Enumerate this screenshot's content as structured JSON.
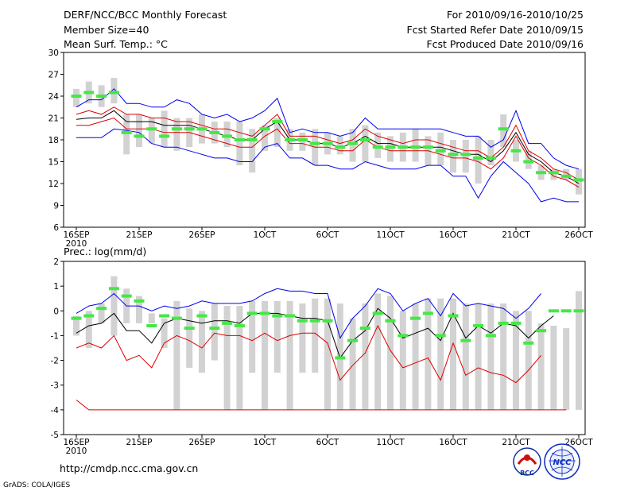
{
  "header": {
    "title": "DERF/NCC/BCC Monthly Forecast",
    "member": "Member Size=40",
    "variable": "Mean Surf. Temp.: °C",
    "period": "For 2010/09/16-2010/10/25",
    "started": "Fcst Started Refer Date 2010/09/15",
    "produced": "Fcst Produced Date 2010/09/16"
  },
  "footer": {
    "url": "http://cmdp.ncc.cma.gov.cn",
    "credit": "GrADS: COLA/IGES",
    "logo_left_text": "BCC",
    "logo_right_text": "NCC"
  },
  "colors": {
    "box": "#d2d2d2",
    "median": "#44e844",
    "blue": "#0000ee",
    "red": "#dd0000",
    "black": "#000000"
  },
  "chart_data": [
    {
      "type": "line",
      "title": "Mean Surf. Temp.: °C",
      "ylim": [
        6,
        30
      ],
      "yticks": [
        "6",
        "9",
        "12",
        "15",
        "18",
        "21",
        "24",
        "27",
        "30"
      ],
      "xticks": [
        {
          "day": 0,
          "label": "16SEP",
          "sub": "2010"
        },
        {
          "day": 5,
          "label": "21SEP"
        },
        {
          "day": 10,
          "label": "26SEP"
        },
        {
          "day": 15,
          "label": "1OCT"
        },
        {
          "day": 20,
          "label": "6OCT"
        },
        {
          "day": 25,
          "label": "11OCT"
        },
        {
          "day": 30,
          "label": "16OCT"
        },
        {
          "day": 35,
          "label": "21OCT"
        },
        {
          "day": 40,
          "label": "26OCT"
        }
      ],
      "box_low": [
        22.5,
        23.0,
        22.5,
        23.0,
        16.0,
        17.0,
        17.5,
        17.0,
        16.5,
        17.0,
        17.5,
        17.5,
        17.0,
        14.5,
        13.5,
        16.5,
        17.0,
        16.5,
        16.5,
        14.5,
        16.0,
        16.0,
        15.0,
        15.0,
        15.5,
        15.0,
        15.0,
        15.0,
        14.5,
        14.5,
        13.5,
        13.5,
        12.0,
        14.5,
        17.0,
        15.0,
        14.0,
        12.5,
        12.5,
        12.5,
        10.5
      ],
      "box_high": [
        25.0,
        26.0,
        25.5,
        26.5,
        21.5,
        21.5,
        21.0,
        22.0,
        21.0,
        21.0,
        21.5,
        20.5,
        20.5,
        20.5,
        19.5,
        20.0,
        21.0,
        19.5,
        19.0,
        19.5,
        19.0,
        18.5,
        19.5,
        20.0,
        19.0,
        18.5,
        19.0,
        19.5,
        18.5,
        19.0,
        18.0,
        18.0,
        18.5,
        18.0,
        21.5,
        18.0,
        16.5,
        14.5,
        14.0,
        14.0,
        14.0
      ],
      "median": [
        24.0,
        24.5,
        24.0,
        24.5,
        19.0,
        18.5,
        19.5,
        18.5,
        19.5,
        19.5,
        19.5,
        19.0,
        18.5,
        18.0,
        18.0,
        19.5,
        20.5,
        18.0,
        18.0,
        17.5,
        17.5,
        17.0,
        17.5,
        18.0,
        17.0,
        17.0,
        17.0,
        17.0,
        17.0,
        16.5,
        16.0,
        16.0,
        15.5,
        15.5,
        19.5,
        16.5,
        15.0,
        13.5,
        13.5,
        13.0,
        12.5
      ],
      "series": [
        {
          "name": "upper",
          "color": "blue",
          "values": [
            22.5,
            23.5,
            23.5,
            25.0,
            23.0,
            23.0,
            22.5,
            22.5,
            23.5,
            23.0,
            21.5,
            21.0,
            21.5,
            20.5,
            21.0,
            22.0,
            23.7,
            19.0,
            19.5,
            19.0,
            19.0,
            18.5,
            19.0,
            21.0,
            19.5,
            19.5,
            19.5,
            19.5,
            19.5,
            19.5,
            19.0,
            18.5,
            18.5,
            17.0,
            18.0,
            22.0,
            17.5,
            17.5,
            15.5,
            14.5,
            14.0
          ]
        },
        {
          "name": "upper-mid",
          "color": "red",
          "values": [
            21.5,
            22.0,
            21.5,
            22.5,
            21.5,
            21.5,
            21.0,
            21.0,
            20.5,
            20.5,
            20.0,
            19.5,
            19.5,
            19.0,
            18.5,
            20.0,
            21.5,
            18.5,
            18.5,
            18.5,
            18.0,
            17.5,
            18.0,
            19.5,
            18.5,
            18.0,
            17.5,
            18.0,
            18.0,
            17.5,
            17.0,
            16.5,
            16.5,
            15.5,
            17.0,
            20.0,
            16.5,
            15.5,
            14.0,
            13.5,
            12.5
          ]
        },
        {
          "name": "mean",
          "color": "black",
          "values": [
            20.8,
            21.0,
            21.0,
            22.0,
            20.5,
            20.5,
            20.5,
            20.0,
            20.0,
            20.0,
            19.5,
            19.0,
            18.5,
            18.0,
            18.0,
            19.5,
            20.5,
            18.0,
            18.0,
            17.5,
            17.5,
            17.0,
            17.5,
            18.5,
            17.5,
            17.5,
            17.0,
            17.0,
            17.0,
            17.0,
            16.5,
            16.0,
            16.0,
            15.0,
            16.5,
            19.0,
            16.0,
            15.0,
            13.5,
            13.0,
            12.0
          ]
        },
        {
          "name": "lower-mid",
          "color": "red",
          "values": [
            20.0,
            20.0,
            20.5,
            21.0,
            19.5,
            19.5,
            19.5,
            19.0,
            19.0,
            19.0,
            18.5,
            18.0,
            17.5,
            17.0,
            17.0,
            18.5,
            19.5,
            17.5,
            17.5,
            17.0,
            17.0,
            16.5,
            16.5,
            18.0,
            17.0,
            16.5,
            16.5,
            16.5,
            16.5,
            16.0,
            15.5,
            15.5,
            15.0,
            14.0,
            15.5,
            18.5,
            15.5,
            14.5,
            13.0,
            12.5,
            11.5
          ]
        },
        {
          "name": "lower",
          "color": "blue",
          "values": [
            18.3,
            18.3,
            18.3,
            19.5,
            19.3,
            19.0,
            17.5,
            17.0,
            17.0,
            16.5,
            16.0,
            15.5,
            15.5,
            15.0,
            15.0,
            17.0,
            17.5,
            15.5,
            15.5,
            14.5,
            14.5,
            14.0,
            14.0,
            15.0,
            14.5,
            14.0,
            14.0,
            14.0,
            14.5,
            14.5,
            13.0,
            13.0,
            10.0,
            13.0,
            15.0,
            13.5,
            12.0,
            9.5,
            10.0,
            9.5,
            9.5
          ]
        }
      ]
    },
    {
      "type": "line",
      "title": "Prec.: log(mm/d)",
      "ylim": [
        -5,
        2
      ],
      "yticks": [
        "-5",
        "-4",
        "-3",
        "-2",
        "-1",
        "0",
        "1",
        "2"
      ],
      "xticks": [
        {
          "day": 0,
          "label": "16SEP",
          "sub": "2010"
        },
        {
          "day": 5,
          "label": "21SEP"
        },
        {
          "day": 10,
          "label": "26SEP"
        },
        {
          "day": 15,
          "label": "1OCT"
        },
        {
          "day": 20,
          "label": "6OCT"
        },
        {
          "day": 25,
          "label": "11OCT"
        },
        {
          "day": 30,
          "label": "16OCT"
        },
        {
          "day": 35,
          "label": "21OCT"
        },
        {
          "day": 40,
          "label": "26OCT"
        }
      ],
      "box_low": [
        -1.0,
        -1.5,
        -0.5,
        -1.0,
        -0.5,
        -0.5,
        -0.5,
        -1.5,
        -4.0,
        -2.3,
        -2.5,
        -2.0,
        -4.0,
        -4.0,
        -2.5,
        -4.0,
        -2.5,
        -4.0,
        -2.5,
        -2.5,
        -4.0,
        -4.0,
        -4.0,
        -4.0,
        -4.0,
        -4.0,
        -4.0,
        -4.0,
        -4.0,
        -4.0,
        -4.0,
        -4.0,
        -4.0,
        -4.0,
        -4.0,
        -4.0,
        -4.0,
        -4.0,
        -4.0,
        -4.0,
        -4.0
      ],
      "box_high": [
        -0.2,
        0.0,
        0.3,
        1.4,
        0.9,
        0.6,
        -0.1,
        -0.3,
        0.4,
        0.1,
        0.0,
        0.3,
        0.2,
        0.2,
        0.4,
        0.4,
        0.4,
        0.4,
        0.3,
        0.5,
        0.5,
        0.3,
        -0.3,
        0.3,
        0.7,
        0.6,
        0.0,
        0.3,
        0.5,
        0.5,
        0.5,
        0.3,
        0.3,
        0.3,
        0.3,
        0.0,
        0.0,
        -0.5,
        -0.6,
        -0.7,
        0.8
      ],
      "median": [
        -0.3,
        -0.2,
        0.1,
        0.9,
        0.6,
        0.4,
        -0.6,
        -0.2,
        -0.3,
        -0.7,
        -0.2,
        -0.7,
        -0.5,
        -0.6,
        -0.1,
        -0.1,
        -0.2,
        -0.2,
        -0.4,
        -0.4,
        -0.4,
        -1.9,
        -1.2,
        -0.7,
        -0.1,
        -0.4,
        -1.0,
        -0.3,
        -0.1,
        -1.0,
        -0.2,
        -1.2,
        -0.6,
        -1.0,
        -0.5,
        -0.5,
        -1.3,
        -0.8,
        0.0,
        0.0,
        0.0
      ],
      "series": [
        {
          "name": "upper",
          "color": "blue",
          "values": [
            -0.1,
            0.2,
            0.3,
            0.7,
            0.2,
            0.2,
            0.0,
            0.2,
            0.1,
            0.2,
            0.4,
            0.3,
            0.3,
            0.3,
            0.4,
            0.7,
            0.9,
            0.8,
            0.8,
            0.7,
            0.7,
            -1.1,
            -0.3,
            0.2,
            0.9,
            0.7,
            0.0,
            0.3,
            0.5,
            -0.2,
            0.7,
            0.2,
            0.3,
            0.2,
            0.1,
            -0.3,
            0.1,
            0.7
          ]
        },
        {
          "name": "mean",
          "color": "black",
          "values": [
            -0.9,
            -0.6,
            -0.5,
            -0.1,
            -0.8,
            -0.8,
            -1.3,
            -0.5,
            -0.3,
            -0.4,
            -0.5,
            -0.4,
            -0.4,
            -0.5,
            -0.1,
            -0.1,
            -0.1,
            -0.2,
            -0.3,
            -0.3,
            -0.4,
            -1.9,
            -1.2,
            -0.8,
            0.1,
            -0.3,
            -1.1,
            -0.9,
            -0.7,
            -1.2,
            -0.1,
            -1.1,
            -0.6,
            -0.9,
            -0.5,
            -0.6,
            -1.1,
            -0.6,
            -0.2
          ]
        },
        {
          "name": "lower",
          "color": "red",
          "values": [
            -1.5,
            -1.3,
            -1.5,
            -1.0,
            -2.0,
            -1.8,
            -2.3,
            -1.3,
            -1.0,
            -1.2,
            -1.5,
            -0.9,
            -1.0,
            -1.0,
            -1.2,
            -0.9,
            -1.2,
            -1.0,
            -0.9,
            -0.9,
            -1.3,
            -2.8,
            -2.2,
            -1.7,
            -0.6,
            -1.6,
            -2.3,
            -2.1,
            -1.9,
            -2.8,
            -1.3,
            -2.6,
            -2.3,
            -2.5,
            -2.6,
            -2.9,
            -2.4,
            -1.8
          ]
        },
        {
          "name": "floor",
          "color": "red",
          "values": [
            -3.6,
            -4.0,
            -4.0,
            -4.0,
            -4.0,
            -4.0,
            -4.0,
            -4.0,
            -4.0,
            -4.0,
            -4.0,
            -4.0,
            -4.0,
            -4.0,
            -4.0,
            -4.0,
            -4.0,
            -4.0,
            -4.0,
            -4.0,
            -4.0,
            -4.0,
            -4.0,
            -4.0,
            -4.0,
            -4.0,
            -4.0,
            -4.0,
            -4.0,
            -4.0,
            -4.0,
            -4.0,
            -4.0,
            -4.0,
            -4.0,
            -4.0,
            -4.0,
            -4.0,
            -4.0,
            -4.0
          ]
        }
      ]
    }
  ]
}
